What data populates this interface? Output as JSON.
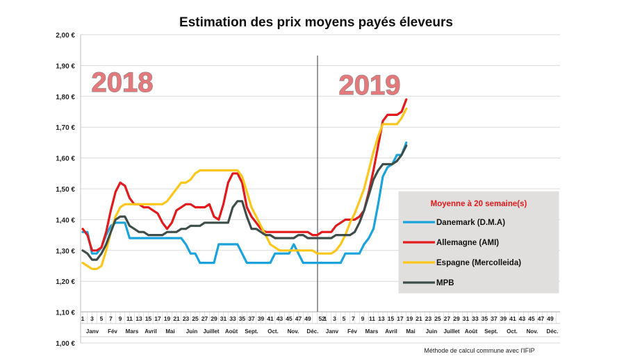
{
  "chart_data": {
    "type": "line",
    "title": "Estimation des prix moyens payés éleveurs",
    "ylim": [
      1.0,
      2.0
    ],
    "y_ticks": [
      "2,00 €",
      "1,90 €",
      "1,80 €",
      "1,70 €",
      "1,60 €",
      "1,50 €",
      "1,40 €",
      "1,30 €",
      "1,20 €",
      "1,10 €",
      "1,00 €"
    ],
    "year_labels": [
      "2018",
      "2019"
    ],
    "week_ticks_2018": [
      "1",
      "3",
      "5",
      "7",
      "9",
      "11",
      "13",
      "15",
      "17",
      "19",
      "21",
      "23",
      "25",
      "27",
      "29",
      "31",
      "33",
      "35",
      "37",
      "39",
      "41",
      "43",
      "45",
      "47",
      "49",
      "52"
    ],
    "week_ticks_2019": [
      "1",
      "3",
      "5",
      "7",
      "9",
      "11",
      "13",
      "15",
      "17",
      "19",
      "21",
      "23",
      "25",
      "27",
      "29",
      "31",
      "33",
      "35",
      "37",
      "39",
      "41",
      "43",
      "45",
      "47",
      "49",
      "52"
    ],
    "months": [
      "Janv",
      "Fév",
      "Mars",
      "Avril",
      "Mai",
      "Juin",
      "Juillet",
      "Août",
      "Sept.",
      "Oct.",
      "Nov.",
      "Déc."
    ],
    "legend_title": "Moyenne à  20 semaine(s)",
    "footnote": "Méthode de calcul commune avec l'IFIP",
    "grid": true,
    "series": [
      {
        "name": "Danemark (D.M.A)",
        "color": "#1aa3dd",
        "values": [
          1.36,
          1.36,
          1.29,
          1.29,
          1.31,
          1.35,
          1.38,
          1.39,
          1.39,
          1.39,
          1.34,
          1.34,
          1.34,
          1.34,
          1.34,
          1.34,
          1.34,
          1.34,
          1.34,
          1.34,
          1.34,
          1.34,
          1.32,
          1.29,
          1.29,
          1.26,
          1.26,
          1.26,
          1.26,
          1.32,
          1.32,
          1.32,
          1.32,
          1.32,
          1.29,
          1.26,
          1.26,
          1.26,
          1.26,
          1.26,
          1.26,
          1.29,
          1.29,
          1.29,
          1.29,
          1.32,
          1.29,
          1.26,
          1.26,
          1.26,
          1.26,
          1.26,
          1.26,
          1.26,
          1.26,
          1.26,
          1.29,
          1.29,
          1.29,
          1.29,
          1.32,
          1.34,
          1.37,
          1.45,
          1.54,
          1.57,
          1.58,
          1.61,
          1.61,
          1.65
        ]
      },
      {
        "name": "Allemagne (AMI)",
        "color": "#e3191b",
        "values": [
          1.37,
          1.35,
          1.3,
          1.3,
          1.31,
          1.36,
          1.43,
          1.49,
          1.52,
          1.51,
          1.47,
          1.45,
          1.45,
          1.44,
          1.44,
          1.43,
          1.42,
          1.39,
          1.37,
          1.39,
          1.43,
          1.44,
          1.45,
          1.45,
          1.44,
          1.44,
          1.44,
          1.45,
          1.41,
          1.4,
          1.45,
          1.52,
          1.55,
          1.55,
          1.52,
          1.44,
          1.41,
          1.39,
          1.37,
          1.36,
          1.36,
          1.36,
          1.36,
          1.36,
          1.36,
          1.36,
          1.36,
          1.36,
          1.36,
          1.35,
          1.35,
          1.36,
          1.36,
          1.36,
          1.38,
          1.39,
          1.4,
          1.4,
          1.4,
          1.41,
          1.43,
          1.49,
          1.56,
          1.64,
          1.72,
          1.74,
          1.74,
          1.74,
          1.75,
          1.79
        ]
      },
      {
        "name": "Espagne (Mercolleida)",
        "color": "#fcc61a",
        "values": [
          1.26,
          1.25,
          1.24,
          1.24,
          1.25,
          1.3,
          1.36,
          1.41,
          1.44,
          1.45,
          1.45,
          1.45,
          1.45,
          1.45,
          1.45,
          1.45,
          1.45,
          1.45,
          1.46,
          1.48,
          1.5,
          1.52,
          1.52,
          1.53,
          1.55,
          1.56,
          1.56,
          1.56,
          1.56,
          1.56,
          1.56,
          1.56,
          1.56,
          1.56,
          1.54,
          1.49,
          1.44,
          1.41,
          1.38,
          1.35,
          1.32,
          1.31,
          1.3,
          1.3,
          1.3,
          1.3,
          1.3,
          1.3,
          1.3,
          1.3,
          1.29,
          1.29,
          1.29,
          1.29,
          1.3,
          1.32,
          1.35,
          1.39,
          1.42,
          1.46,
          1.5,
          1.56,
          1.62,
          1.67,
          1.71,
          1.71,
          1.71,
          1.71,
          1.73,
          1.76
        ]
      },
      {
        "name": "MPB",
        "color": "#3e4d4a",
        "values": [
          1.3,
          1.29,
          1.27,
          1.27,
          1.29,
          1.32,
          1.36,
          1.4,
          1.41,
          1.41,
          1.38,
          1.37,
          1.36,
          1.36,
          1.35,
          1.35,
          1.35,
          1.35,
          1.36,
          1.36,
          1.36,
          1.37,
          1.37,
          1.38,
          1.38,
          1.38,
          1.39,
          1.39,
          1.39,
          1.39,
          1.39,
          1.39,
          1.44,
          1.46,
          1.46,
          1.41,
          1.37,
          1.37,
          1.36,
          1.35,
          1.35,
          1.34,
          1.34,
          1.34,
          1.34,
          1.34,
          1.35,
          1.35,
          1.34,
          1.34,
          1.34,
          1.34,
          1.34,
          1.34,
          1.35,
          1.35,
          1.35,
          1.35,
          1.36,
          1.39,
          1.43,
          1.48,
          1.53,
          1.56,
          1.58,
          1.58,
          1.58,
          1.59,
          1.61,
          1.64
        ]
      }
    ]
  }
}
